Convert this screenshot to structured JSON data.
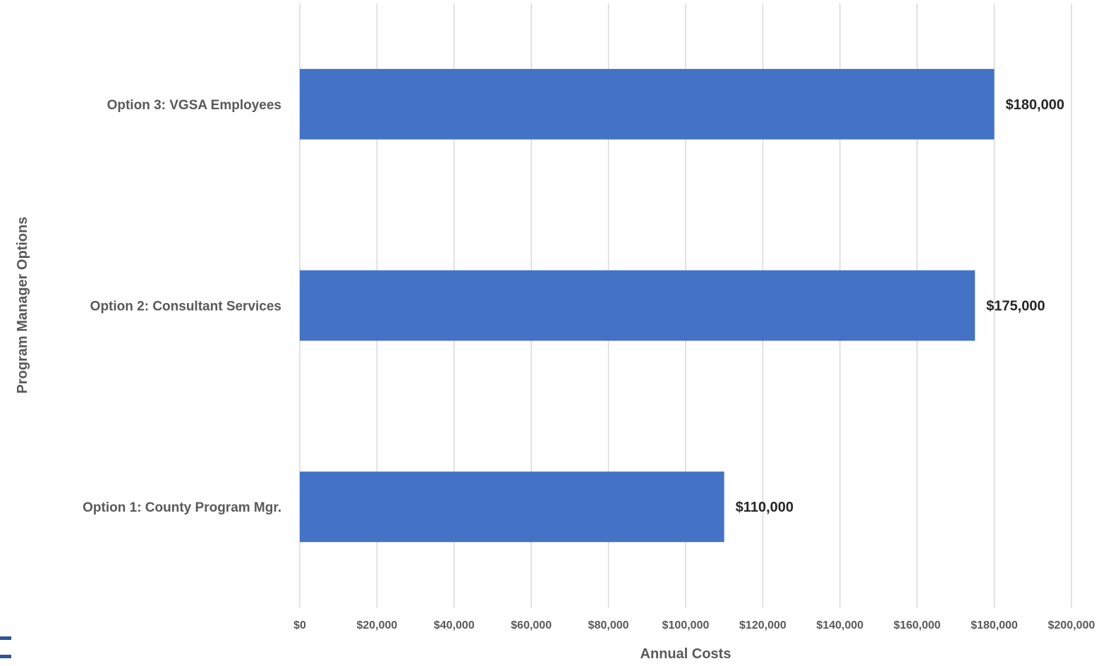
{
  "chart_data": {
    "type": "bar",
    "orientation": "horizontal",
    "title": "",
    "xlabel": "Annual Costs",
    "ylabel": "Program Manager Options",
    "categories": [
      "Option 1: County Program Mgr.",
      "Option 2: Consultant Services",
      "Option 3: VGSA Employees"
    ],
    "values": [
      110000,
      175000,
      180000
    ],
    "value_labels": [
      "$110,000",
      "$175,000",
      "$180,000"
    ],
    "xlim": [
      0,
      200000
    ],
    "x_ticks": [
      0,
      20000,
      40000,
      60000,
      80000,
      100000,
      120000,
      140000,
      160000,
      180000,
      200000
    ],
    "x_tick_labels": [
      "$0",
      "$20,000",
      "$40,000",
      "$60,000",
      "$80,000",
      "$100,000",
      "$120,000",
      "$140,000",
      "$160,000",
      "$180,000",
      "$200,000"
    ],
    "grid": "vertical",
    "legend": "none",
    "bar_color": "#4472c4",
    "grid_color": "#d9d9d9"
  }
}
